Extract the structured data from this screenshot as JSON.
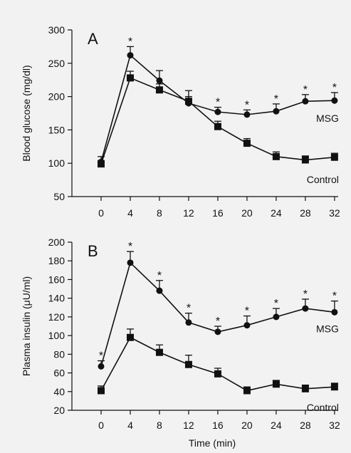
{
  "chart_data": [
    {
      "type": "line",
      "panel_label": "A",
      "x": [
        0,
        4,
        8,
        12,
        16,
        20,
        24,
        28,
        32
      ],
      "xlim": [
        -4,
        32.5
      ],
      "xticks": [
        "0",
        "4",
        "8",
        "12",
        "16",
        "20",
        "24",
        "28",
        "32"
      ],
      "ylabel": "Blood glucose (mg/dl)",
      "ylim": [
        50,
        300
      ],
      "yticks": [
        "50",
        "100",
        "150",
        "200",
        "250",
        "300"
      ],
      "xlabel": "",
      "series": [
        {
          "name": "MSG",
          "marker": "circle",
          "values": [
            102,
            262,
            224,
            190,
            177,
            173,
            178,
            193,
            194
          ],
          "errors": [
            8,
            13,
            15,
            10,
            7,
            7,
            11,
            10,
            12
          ],
          "significant": [
            false,
            true,
            false,
            false,
            true,
            true,
            true,
            true,
            true
          ]
        },
        {
          "name": "Control",
          "marker": "square",
          "values": [
            99,
            228,
            210,
            193,
            155,
            130,
            110,
            105,
            109
          ],
          "errors": [
            5,
            10,
            9,
            16,
            8,
            7,
            7,
            6,
            6
          ],
          "significant": [
            false,
            false,
            false,
            false,
            false,
            false,
            false,
            false,
            false
          ]
        }
      ],
      "significance_marker": "*"
    },
    {
      "type": "line",
      "panel_label": "B",
      "x": [
        0,
        4,
        8,
        12,
        16,
        20,
        24,
        28,
        32
      ],
      "xlim": [
        -4,
        32.5
      ],
      "xticks": [
        "0",
        "4",
        "8",
        "12",
        "16",
        "20",
        "24",
        "28",
        "32"
      ],
      "ylabel": "Plasma insulin (μU/ml)",
      "ylim": [
        20,
        200
      ],
      "yticks": [
        "20",
        "40",
        "60",
        "80",
        "100",
        "120",
        "140",
        "160",
        "180",
        "200"
      ],
      "xlabel": "Time (min)",
      "series": [
        {
          "name": "MSG",
          "marker": "circle",
          "values": [
            67,
            178,
            148,
            114,
            104,
            111,
            120,
            129,
            125
          ],
          "errors": [
            6,
            12,
            11,
            10,
            6,
            10,
            9,
            10,
            12
          ],
          "significant": [
            true,
            true,
            true,
            true,
            true,
            true,
            true,
            true,
            true
          ]
        },
        {
          "name": "Control",
          "marker": "square",
          "values": [
            41,
            98,
            82,
            69,
            59,
            41,
            48,
            43,
            45
          ],
          "errors": [
            5,
            9,
            8,
            10,
            6,
            4,
            4,
            4,
            4
          ],
          "significant": [
            false,
            false,
            false,
            false,
            false,
            false,
            false,
            false,
            false
          ]
        }
      ],
      "significance_marker": "*"
    }
  ]
}
